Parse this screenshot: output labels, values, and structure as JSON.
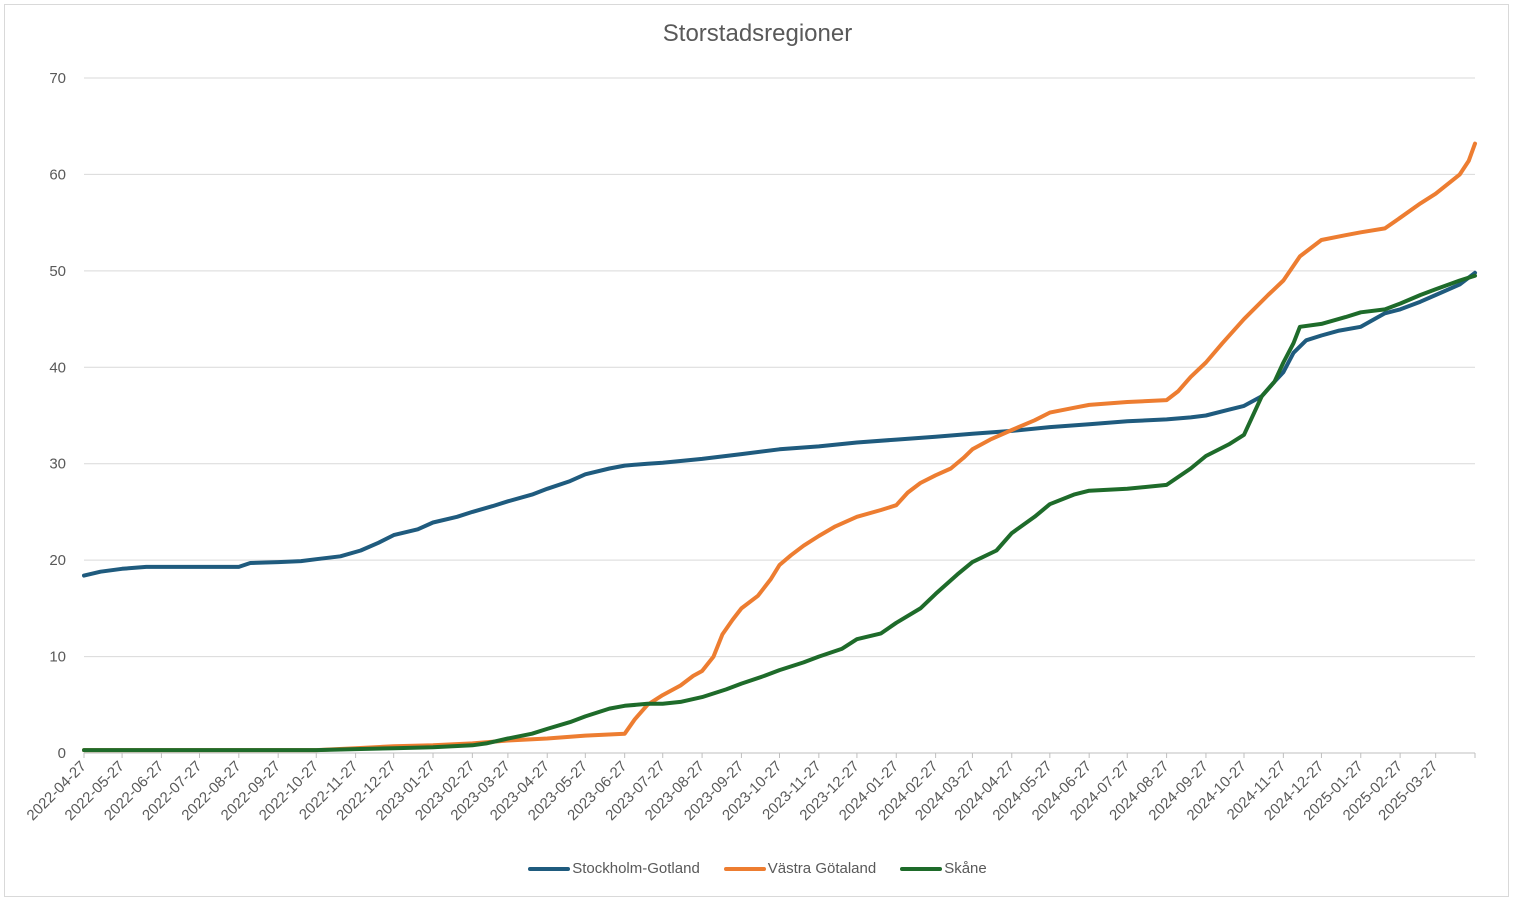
{
  "chart_data": {
    "type": "line",
    "title": "Storstadsregioner",
    "xlabel": "",
    "ylabel": "",
    "ylim": [
      0,
      70
    ],
    "yticks": [
      0,
      10,
      20,
      30,
      40,
      50,
      60,
      70
    ],
    "xlim": [
      "2022-04-27",
      "2025-04-27"
    ],
    "xtick_labels": [
      "2022-04-27",
      "2022-05-27",
      "2022-06-27",
      "2022-07-27",
      "2022-08-27",
      "2022-09-27",
      "2022-10-27",
      "2022-11-27",
      "2022-12-27",
      "2023-01-27",
      "2023-02-27",
      "2023-03-27",
      "2023-04-27",
      "2023-05-27",
      "2023-06-27",
      "2023-07-27",
      "2023-08-27",
      "2023-09-27",
      "2023-10-27",
      "2023-11-27",
      "2023-12-27",
      "2024-01-27",
      "2024-02-27",
      "2024-03-27",
      "2024-04-27",
      "2024-05-27",
      "2024-06-27",
      "2024-07-27",
      "2024-08-27",
      "2024-09-27",
      "2024-10-27",
      "2024-11-27",
      "2024-12-27",
      "2025-01-27",
      "2025-02-27",
      "2025-03-27"
    ],
    "grid": true,
    "legend": "bottom",
    "series": [
      {
        "name": "Stockholm-Gotland",
        "color": "#1f5b7e",
        "points": [
          [
            "2022-04-27",
            18.4
          ],
          [
            "2022-05-10",
            18.8
          ],
          [
            "2022-05-27",
            19.1
          ],
          [
            "2022-06-15",
            19.3
          ],
          [
            "2022-07-27",
            19.3
          ],
          [
            "2022-08-27",
            19.3
          ],
          [
            "2022-09-05",
            19.7
          ],
          [
            "2022-09-27",
            19.8
          ],
          [
            "2022-10-15",
            19.9
          ],
          [
            "2022-10-27",
            20.1
          ],
          [
            "2022-11-15",
            20.4
          ],
          [
            "2022-12-01",
            21.0
          ],
          [
            "2022-12-15",
            21.8
          ],
          [
            "2022-12-27",
            22.6
          ],
          [
            "2023-01-15",
            23.2
          ],
          [
            "2023-01-27",
            23.9
          ],
          [
            "2023-02-15",
            24.5
          ],
          [
            "2023-02-27",
            25.0
          ],
          [
            "2023-03-15",
            25.6
          ],
          [
            "2023-03-27",
            26.1
          ],
          [
            "2023-04-15",
            26.8
          ],
          [
            "2023-04-27",
            27.4
          ],
          [
            "2023-05-15",
            28.2
          ],
          [
            "2023-05-27",
            28.9
          ],
          [
            "2023-06-15",
            29.5
          ],
          [
            "2023-06-27",
            29.8
          ],
          [
            "2023-07-15",
            30.0
          ],
          [
            "2023-07-27",
            30.1
          ],
          [
            "2023-08-27",
            30.5
          ],
          [
            "2023-09-27",
            31.0
          ],
          [
            "2023-10-27",
            31.5
          ],
          [
            "2023-11-27",
            31.8
          ],
          [
            "2023-12-27",
            32.2
          ],
          [
            "2024-01-27",
            32.5
          ],
          [
            "2024-02-27",
            32.8
          ],
          [
            "2024-03-27",
            33.1
          ],
          [
            "2024-04-27",
            33.4
          ],
          [
            "2024-05-27",
            33.8
          ],
          [
            "2024-06-27",
            34.1
          ],
          [
            "2024-07-27",
            34.4
          ],
          [
            "2024-08-27",
            34.6
          ],
          [
            "2024-09-15",
            34.8
          ],
          [
            "2024-09-27",
            35.0
          ],
          [
            "2024-10-15",
            35.6
          ],
          [
            "2024-10-27",
            36.0
          ],
          [
            "2024-11-10",
            37.0
          ],
          [
            "2024-11-20",
            38.5
          ],
          [
            "2024-11-27",
            39.5
          ],
          [
            "2024-12-05",
            41.5
          ],
          [
            "2024-12-15",
            42.8
          ],
          [
            "2024-12-27",
            43.3
          ],
          [
            "2025-01-10",
            43.8
          ],
          [
            "2025-01-27",
            44.2
          ],
          [
            "2025-02-15",
            45.6
          ],
          [
            "2025-02-27",
            46.0
          ],
          [
            "2025-03-15",
            46.8
          ],
          [
            "2025-03-27",
            47.5
          ],
          [
            "2025-04-15",
            48.6
          ],
          [
            "2025-04-27",
            49.8
          ]
        ]
      },
      {
        "name": "Västra Götaland",
        "color": "#ed7d31",
        "points": [
          [
            "2022-04-27",
            0.3
          ],
          [
            "2022-07-27",
            0.3
          ],
          [
            "2022-10-27",
            0.3
          ],
          [
            "2022-11-27",
            0.5
          ],
          [
            "2022-12-27",
            0.7
          ],
          [
            "2023-01-27",
            0.8
          ],
          [
            "2023-02-27",
            1.0
          ],
          [
            "2023-03-27",
            1.3
          ],
          [
            "2023-04-27",
            1.5
          ],
          [
            "2023-05-27",
            1.8
          ],
          [
            "2023-06-27",
            2.0
          ],
          [
            "2023-07-05",
            3.5
          ],
          [
            "2023-07-15",
            5.0
          ],
          [
            "2023-07-27",
            6.0
          ],
          [
            "2023-08-10",
            7.0
          ],
          [
            "2023-08-20",
            8.0
          ],
          [
            "2023-08-27",
            8.5
          ],
          [
            "2023-09-05",
            10.0
          ],
          [
            "2023-09-12",
            12.3
          ],
          [
            "2023-09-20",
            13.8
          ],
          [
            "2023-09-27",
            15.0
          ],
          [
            "2023-10-10",
            16.3
          ],
          [
            "2023-10-20",
            18.0
          ],
          [
            "2023-10-27",
            19.5
          ],
          [
            "2023-11-05",
            20.5
          ],
          [
            "2023-11-15",
            21.5
          ],
          [
            "2023-11-27",
            22.5
          ],
          [
            "2023-12-10",
            23.5
          ],
          [
            "2023-12-27",
            24.5
          ],
          [
            "2024-01-15",
            25.2
          ],
          [
            "2024-01-27",
            25.7
          ],
          [
            "2024-02-05",
            27.0
          ],
          [
            "2024-02-15",
            28.0
          ],
          [
            "2024-02-27",
            28.8
          ],
          [
            "2024-03-10",
            29.5
          ],
          [
            "2024-03-20",
            30.6
          ],
          [
            "2024-03-27",
            31.5
          ],
          [
            "2024-04-10",
            32.5
          ],
          [
            "2024-04-27",
            33.5
          ],
          [
            "2024-05-15",
            34.5
          ],
          [
            "2024-05-27",
            35.3
          ],
          [
            "2024-06-15",
            35.8
          ],
          [
            "2024-06-27",
            36.1
          ],
          [
            "2024-07-27",
            36.4
          ],
          [
            "2024-08-27",
            36.6
          ],
          [
            "2024-09-05",
            37.5
          ],
          [
            "2024-09-15",
            39.0
          ],
          [
            "2024-09-27",
            40.5
          ],
          [
            "2024-10-10",
            42.5
          ],
          [
            "2024-10-27",
            45.0
          ],
          [
            "2024-11-15",
            47.5
          ],
          [
            "2024-11-27",
            49.0
          ],
          [
            "2024-12-10",
            51.5
          ],
          [
            "2024-12-27",
            53.2
          ],
          [
            "2025-01-15",
            53.7
          ],
          [
            "2025-01-27",
            54.0
          ],
          [
            "2025-02-15",
            54.4
          ],
          [
            "2025-02-27",
            55.5
          ],
          [
            "2025-03-15",
            57.0
          ],
          [
            "2025-03-27",
            58.0
          ],
          [
            "2025-04-15",
            60.0
          ],
          [
            "2025-04-22",
            61.4
          ],
          [
            "2025-04-27",
            63.2
          ]
        ]
      },
      {
        "name": "Skåne",
        "color": "#1e6b2a",
        "points": [
          [
            "2022-04-27",
            0.3
          ],
          [
            "2022-07-27",
            0.3
          ],
          [
            "2022-10-27",
            0.3
          ],
          [
            "2022-11-27",
            0.4
          ],
          [
            "2022-12-27",
            0.5
          ],
          [
            "2023-01-27",
            0.6
          ],
          [
            "2023-02-27",
            0.8
          ],
          [
            "2023-03-10",
            1.0
          ],
          [
            "2023-03-27",
            1.5
          ],
          [
            "2023-04-15",
            2.0
          ],
          [
            "2023-04-27",
            2.5
          ],
          [
            "2023-05-15",
            3.2
          ],
          [
            "2023-05-27",
            3.8
          ],
          [
            "2023-06-15",
            4.6
          ],
          [
            "2023-06-27",
            4.9
          ],
          [
            "2023-07-15",
            5.1
          ],
          [
            "2023-07-27",
            5.1
          ],
          [
            "2023-08-10",
            5.3
          ],
          [
            "2023-08-27",
            5.8
          ],
          [
            "2023-09-15",
            6.6
          ],
          [
            "2023-09-27",
            7.2
          ],
          [
            "2023-10-15",
            8.0
          ],
          [
            "2023-10-27",
            8.6
          ],
          [
            "2023-11-15",
            9.4
          ],
          [
            "2023-11-27",
            10.0
          ],
          [
            "2023-12-15",
            10.8
          ],
          [
            "2023-12-27",
            11.8
          ],
          [
            "2024-01-15",
            12.4
          ],
          [
            "2024-01-27",
            13.5
          ],
          [
            "2024-02-15",
            15.0
          ],
          [
            "2024-02-27",
            16.5
          ],
          [
            "2024-03-15",
            18.5
          ],
          [
            "2024-03-27",
            19.8
          ],
          [
            "2024-04-15",
            21.0
          ],
          [
            "2024-04-27",
            22.8
          ],
          [
            "2024-05-15",
            24.5
          ],
          [
            "2024-05-27",
            25.8
          ],
          [
            "2024-06-15",
            26.8
          ],
          [
            "2024-06-27",
            27.2
          ],
          [
            "2024-07-27",
            27.4
          ],
          [
            "2024-08-27",
            27.8
          ],
          [
            "2024-09-15",
            29.5
          ],
          [
            "2024-09-27",
            30.8
          ],
          [
            "2024-10-15",
            32.0
          ],
          [
            "2024-10-27",
            33.0
          ],
          [
            "2024-11-10",
            37.0
          ],
          [
            "2024-11-20",
            38.5
          ],
          [
            "2024-11-27",
            40.5
          ],
          [
            "2024-12-05",
            42.5
          ],
          [
            "2024-12-10",
            44.2
          ],
          [
            "2024-12-27",
            44.5
          ],
          [
            "2025-01-15",
            45.2
          ],
          [
            "2025-01-27",
            45.7
          ],
          [
            "2025-02-15",
            46.0
          ],
          [
            "2025-02-27",
            46.6
          ],
          [
            "2025-03-15",
            47.5
          ],
          [
            "2025-03-27",
            48.1
          ],
          [
            "2025-04-15",
            49.0
          ],
          [
            "2025-04-27",
            49.5
          ]
        ]
      }
    ]
  }
}
